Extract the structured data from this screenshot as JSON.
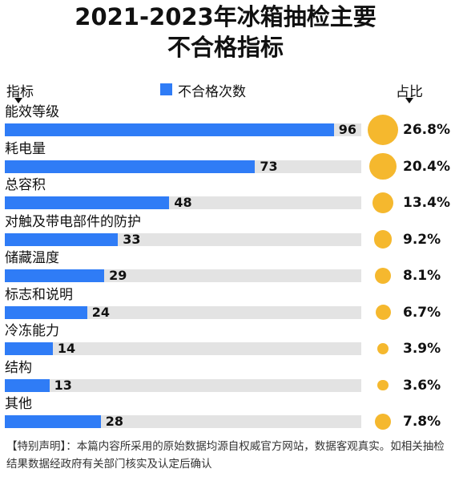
{
  "chart_data": {
    "type": "bar",
    "title_line1": "2021-2023年冰箱抽检主要",
    "title_line2": "不合格指标",
    "category_header": "指标",
    "legend_label": "不合格次数",
    "share_header": "占比",
    "categories": [
      "能效等级",
      "耗电量",
      "总容积",
      "对触及带电部件的防护",
      "储藏温度",
      "标志和说明",
      "冷冻能力",
      "结构",
      "其他"
    ],
    "series": [
      {
        "name": "不合格次数",
        "values": [
          96,
          73,
          48,
          33,
          29,
          24,
          14,
          13,
          28
        ],
        "color": "#2f7cf6"
      }
    ],
    "shares": [
      "26.8%",
      "20.4%",
      "13.4%",
      "9.2%",
      "8.1%",
      "6.7%",
      "3.9%",
      "3.6%",
      "7.8%"
    ],
    "share_values": [
      26.8,
      20.4,
      13.4,
      9.2,
      8.1,
      6.7,
      3.9,
      3.6,
      7.8
    ],
    "xlim": [
      0,
      104
    ],
    "share_color": "#f5b82e",
    "track_color": "#e3e3e3"
  },
  "footer": "【特别声明】：本篇内容所采用的原始数据均源自权威官方网站，数据客观真实。如相关抽检结果数据经政府有关部门核实及认定后确认"
}
